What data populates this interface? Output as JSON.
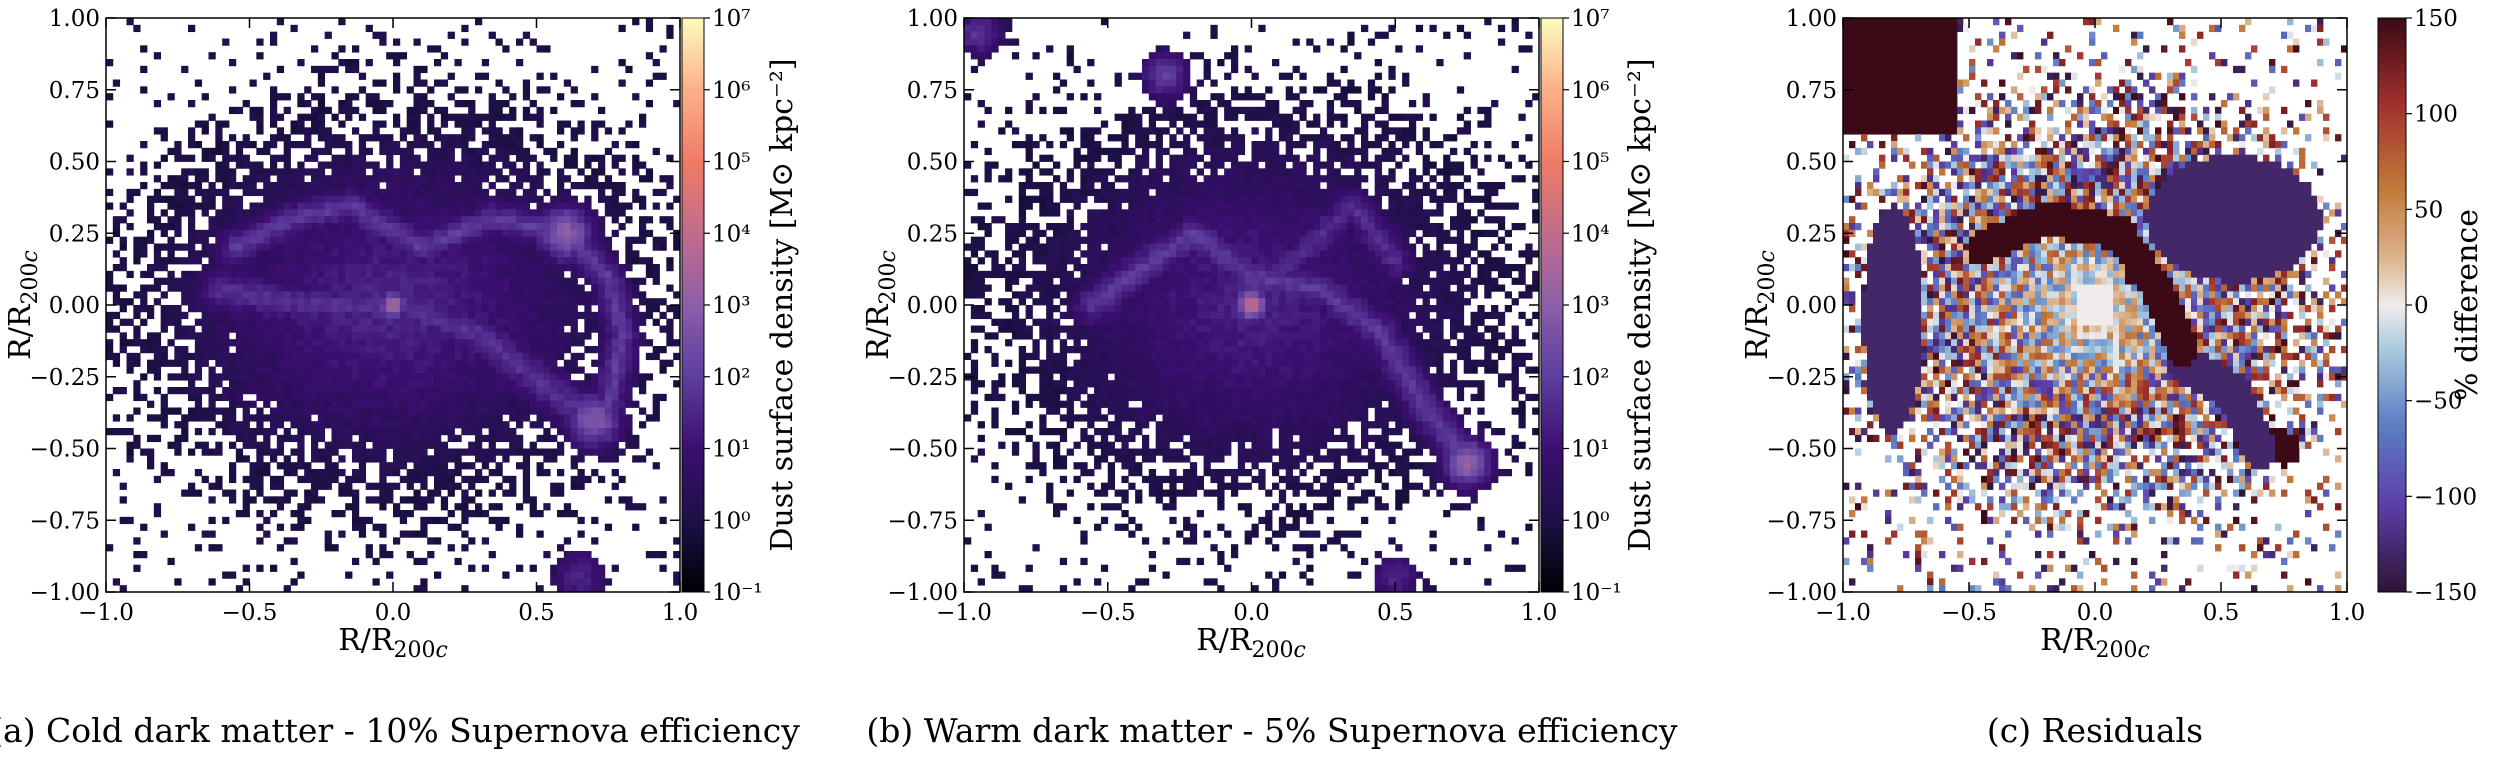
{
  "figure": {
    "panels": [
      {
        "caption": "(a) Cold dark matter - 10% Supernova efficiency",
        "xlabel": "R/R200c",
        "ylabel": "R/R200c",
        "colorbar_label": "Dust surface density [M⊙ kpc⁻²]",
        "colorbar_ticks": [
          "10⁻¹",
          "10⁰",
          "10¹",
          "10²",
          "10³",
          "10⁴",
          "10⁵",
          "10⁶",
          "10⁷"
        ]
      },
      {
        "caption": "(b) Warm dark matter - 5% Supernova efficiency",
        "xlabel": "R/R200c",
        "ylabel": "R/R200c",
        "colorbar_label": "Dust surface density [M⊙ kpc⁻²]",
        "colorbar_ticks": [
          "10⁻¹",
          "10⁰",
          "10¹",
          "10²",
          "10³",
          "10⁴",
          "10⁵",
          "10⁶",
          "10⁷"
        ]
      },
      {
        "caption": "(c) Residuals",
        "xlabel": "R/R200c",
        "ylabel": "R/R200c",
        "colorbar_label": "% difference",
        "colorbar_ticks": [
          "−150",
          "−100",
          "−50",
          "0",
          "50",
          "100",
          "150"
        ]
      }
    ],
    "x_tick_labels": [
      "−1.0",
      "−0.5",
      "0.0",
      "0.5",
      "1.0"
    ],
    "y_tick_labels": [
      "−1.00",
      "−0.75",
      "−0.50",
      "−0.25",
      "0.00",
      "0.25",
      "0.50",
      "0.75",
      "1.00"
    ]
  },
  "chart_data": [
    {
      "type": "heatmap",
      "caption": "(a) Cold dark matter - 10% Supernova efficiency",
      "xlabel": "R/R200c",
      "ylabel": "R/R200c",
      "xlim": [
        -1.0,
        1.0
      ],
      "ylim": [
        -1.0,
        1.0
      ],
      "colorbar": {
        "label": "Dust surface density [M⊙ kpc⁻²]",
        "scale": "log",
        "range": [
          0.1,
          10000000
        ],
        "colormap": "magma"
      },
      "features": [
        {
          "description": "central peak",
          "x": 0.0,
          "y": 0.0,
          "log10_density": 3.5
        },
        {
          "description": "upper-right substructure",
          "x": 0.6,
          "y": 0.25,
          "log10_density": 3.0
        },
        {
          "description": "lower-right substructure",
          "x": 0.7,
          "y": -0.4,
          "log10_density": 2.8
        },
        {
          "description": "bottom clump",
          "x": 0.65,
          "y": -0.95,
          "log10_density": 1.5
        }
      ]
    },
    {
      "type": "heatmap",
      "caption": "(b) Warm dark matter - 5% Supernova efficiency",
      "xlabel": "R/R200c",
      "ylabel": "R/R200c",
      "xlim": [
        -1.0,
        1.0
      ],
      "ylim": [
        -1.0,
        1.0
      ],
      "colorbar": {
        "label": "Dust surface density [M⊙ kpc⁻²]",
        "scale": "log",
        "range": [
          0.1,
          10000000
        ],
        "colormap": "magma"
      },
      "features": [
        {
          "description": "central peak",
          "x": 0.0,
          "y": 0.0,
          "log10_density": 4.0
        },
        {
          "description": "lower-right substructure",
          "x": 0.75,
          "y": -0.55,
          "log10_density": 3.2
        },
        {
          "description": "upper clump",
          "x": -0.3,
          "y": 0.8,
          "log10_density": 2.0
        },
        {
          "description": "top-left corner clump",
          "x": -0.95,
          "y": 0.95,
          "log10_density": 1.8
        },
        {
          "description": "bottom clump",
          "x": 0.5,
          "y": -0.95,
          "log10_density": 1.5
        }
      ]
    },
    {
      "type": "heatmap",
      "caption": "(c) Residuals",
      "xlabel": "R/R200c",
      "ylabel": "R/R200c",
      "xlim": [
        -1.0,
        1.0
      ],
      "ylim": [
        -1.0,
        1.0
      ],
      "colorbar": {
        "label": "% difference",
        "scale": "linear",
        "range": [
          -150,
          150
        ],
        "colormap": "twilight_shifted"
      },
      "features": [
        {
          "description": "top-left region",
          "x": -0.75,
          "y": 0.85,
          "value": 150
        },
        {
          "description": "upper-right region",
          "x": 0.5,
          "y": 0.25,
          "value": -130
        },
        {
          "description": "central arc",
          "x": 0.15,
          "y": 0.1,
          "value": 150
        },
        {
          "description": "left band",
          "x": -0.8,
          "y": -0.1,
          "value": -130
        },
        {
          "description": "center",
          "x": 0.0,
          "y": 0.0,
          "value": 0
        }
      ]
    }
  ]
}
